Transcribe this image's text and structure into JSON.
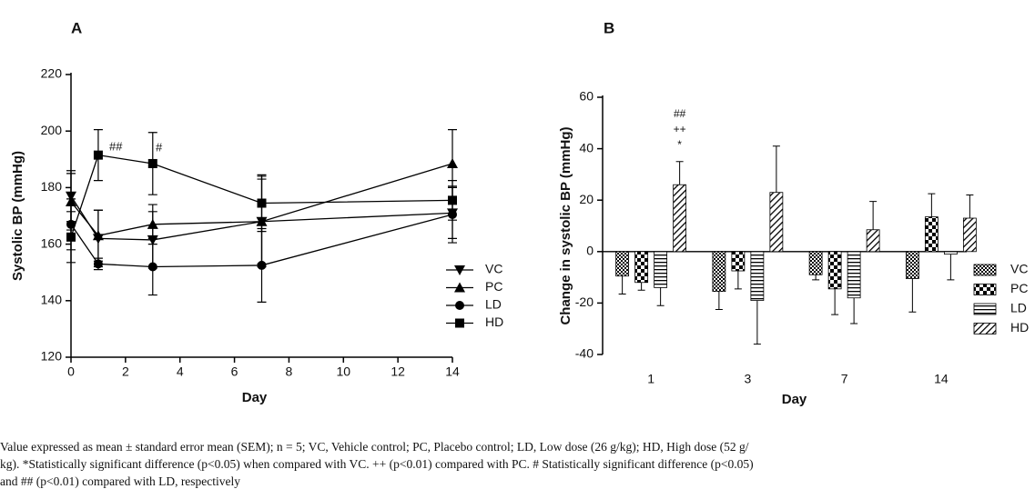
{
  "chart_data": [
    {
      "type": "line",
      "title": "A",
      "x_label": "Day",
      "y_label": "Systolic BP (mmHg)",
      "x": [
        0,
        1,
        3,
        7,
        14
      ],
      "xlim": [
        0,
        14
      ],
      "xticks": [
        0,
        2,
        4,
        6,
        8,
        10,
        12,
        14
      ],
      "ylim": [
        120,
        220
      ],
      "yticks": [
        120,
        140,
        160,
        180,
        200,
        220
      ],
      "series": [
        {
          "name": "VC",
          "color": "#000000",
          "marker": "triangle-down",
          "values": [
            177,
            162,
            161.5,
            168,
            171
          ],
          "errors": [
            9,
            10,
            10,
            15,
            9
          ]
        },
        {
          "name": "PC",
          "color": "#000000",
          "marker": "triangle-up",
          "values": [
            175,
            163,
            167,
            168,
            188.5
          ],
          "errors": [
            10,
            9,
            7,
            16,
            12
          ]
        },
        {
          "name": "LD",
          "color": "#000000",
          "marker": "circle",
          "values": [
            167,
            153,
            152,
            152.5,
            170.5
          ],
          "errors": [
            9,
            2,
            10,
            13,
            10
          ]
        },
        {
          "name": "HD",
          "color": "#000000",
          "marker": "square",
          "values": [
            162.5,
            191.5,
            188.5,
            174.5,
            175.5
          ],
          "errors": [
            9,
            9,
            11,
            10,
            7
          ]
        }
      ],
      "annotations": [
        "##",
        "#"
      ],
      "legend": "right"
    },
    {
      "type": "bar",
      "title": "B",
      "x_label": "Day",
      "y_label": "Change in systolic BP (mmHg)",
      "categories": [
        "1",
        "3",
        "7",
        "14"
      ],
      "ylim": [
        -40,
        60
      ],
      "yticks": [
        -40,
        -20,
        0,
        20,
        40,
        60
      ],
      "series": [
        {
          "name": "VC",
          "color": "#000000",
          "pattern": "checker-small",
          "values": [
            -9.5,
            -15.5,
            -9,
            -10.5
          ],
          "errors": [
            7,
            7,
            2,
            13
          ]
        },
        {
          "name": "PC",
          "color": "#000000",
          "pattern": "checker-large",
          "values": [
            -12,
            -7.5,
            -14.5,
            13.5
          ],
          "errors": [
            3,
            7,
            10,
            9
          ]
        },
        {
          "name": "LD",
          "color": "#000000",
          "pattern": "hlines",
          "values": [
            -14,
            -19,
            -18,
            -1
          ],
          "errors": [
            7,
            17,
            10,
            10
          ]
        },
        {
          "name": "HD",
          "color": "#000000",
          "pattern": "diagonal",
          "values": [
            26,
            23,
            8.5,
            13
          ],
          "errors": [
            9,
            18,
            11,
            9
          ]
        }
      ],
      "annotations": [
        "##",
        "++",
        "*"
      ],
      "legend": "right"
    }
  ],
  "caption": {
    "lines": [
      "Value expressed as mean ± standard error mean (SEM); n = 5; VC, Vehicle control; PC, Placebo control; LD, Low dose (26 g/kg); HD, High dose (52 g/",
      "kg). *Statistically significant difference (p<0.05) when compared with VC. ++ (p<0.01) compared with PC. # Statistically significant difference (p<0.05)",
      "and ## (p<0.01) compared with LD, respectively"
    ]
  }
}
